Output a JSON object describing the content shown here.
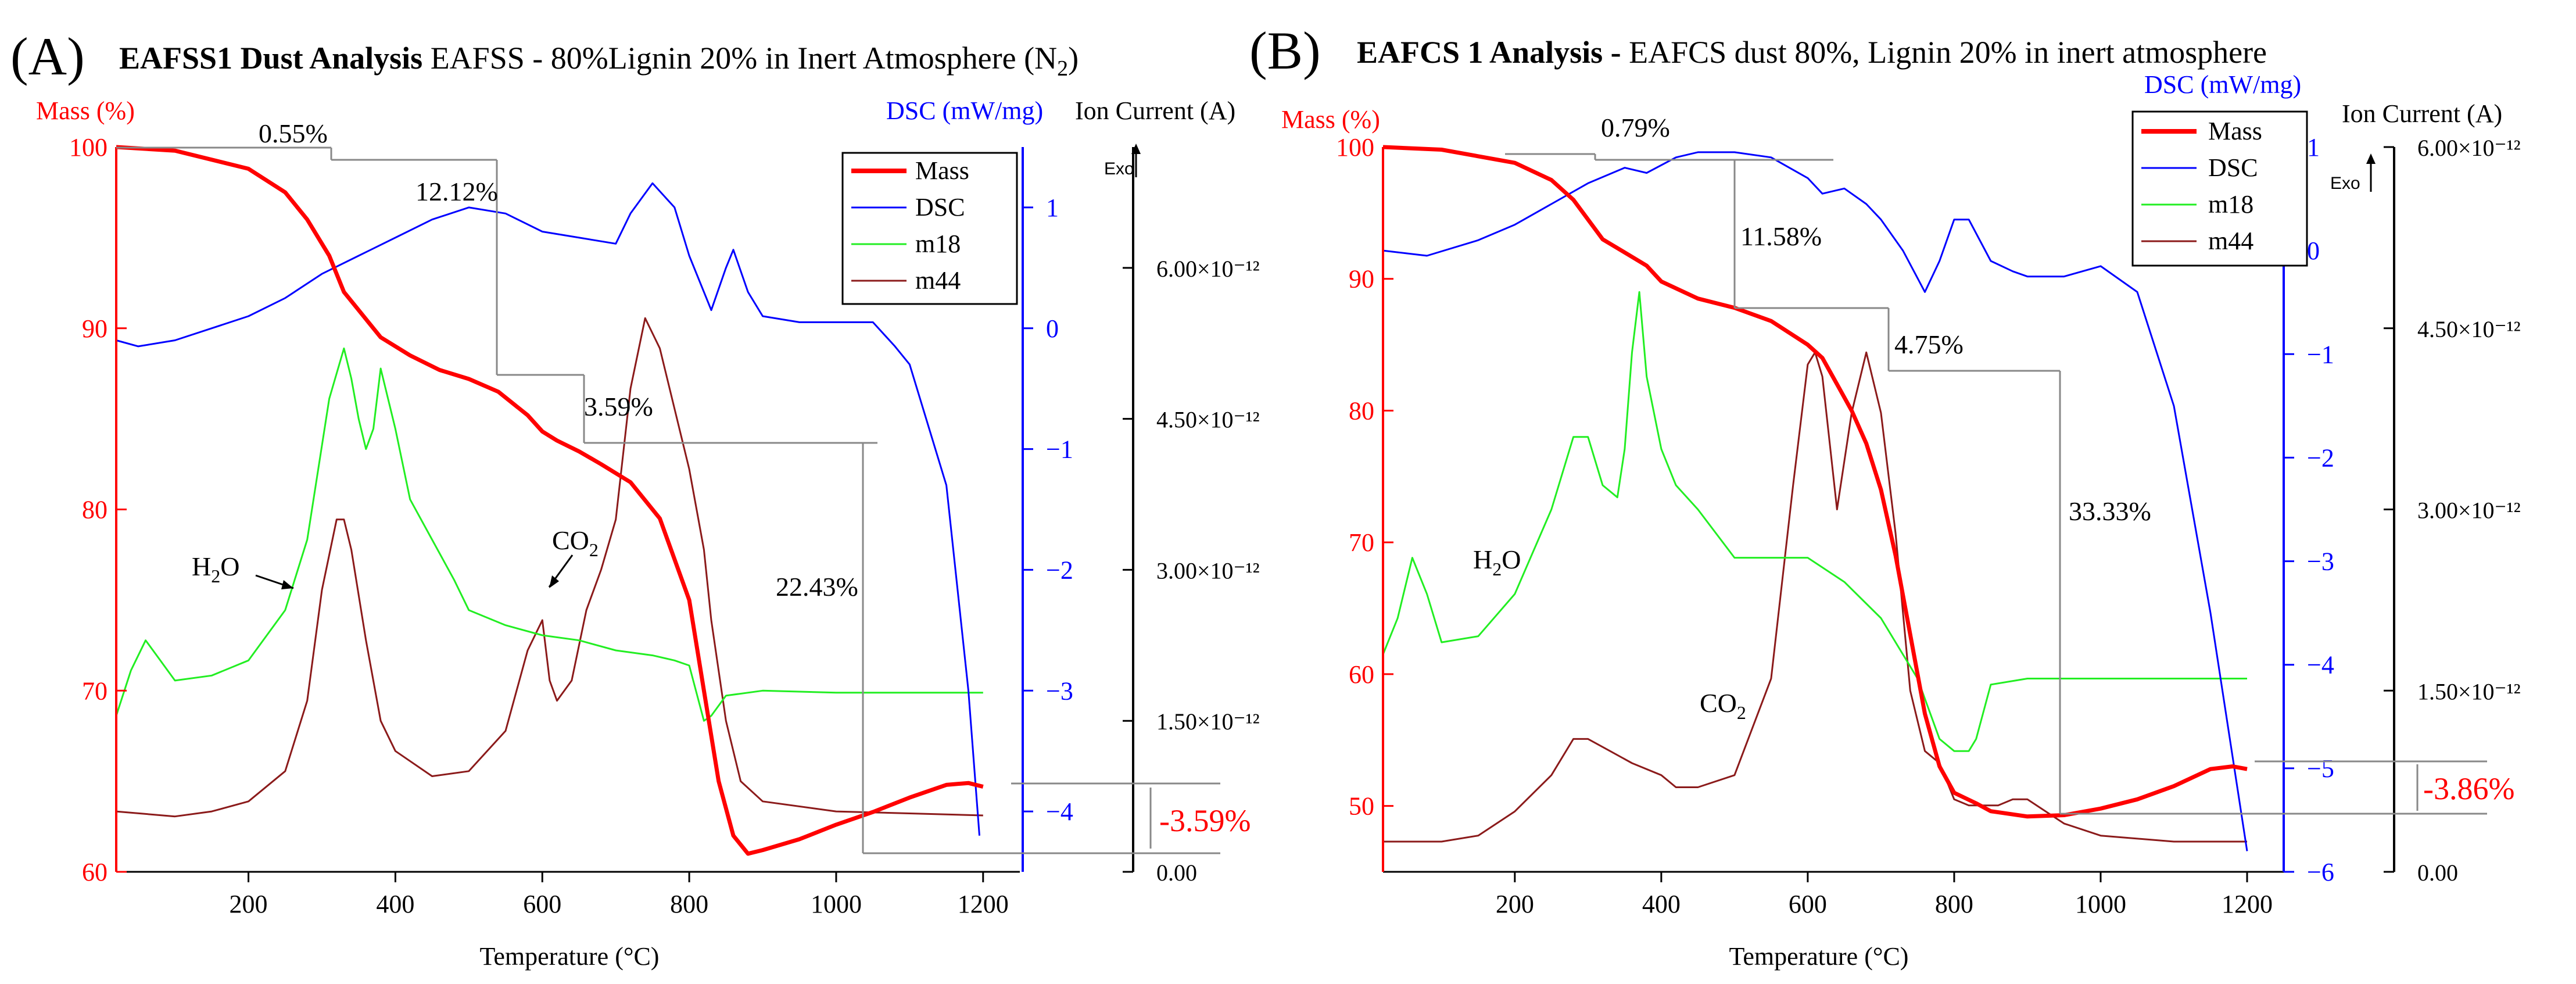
{
  "colors": {
    "mass": "#ff0000",
    "dsc": "#0000ff",
    "m18": "#22ee22",
    "m44": "#8b1a1a",
    "step": "#888888",
    "ion_axis": "#000000"
  },
  "chart_data": [
    {
      "type": "line",
      "panel_letter": "(A)",
      "title_bold": "EAFSS1 Dust Analysis",
      "title_rest": "EAFSS - 80%Lignin 20% in Inert Atmosphere (N",
      "title_sub": "2",
      "title_end": ")",
      "xlabel": "Temperature (°C)",
      "xlim": [
        20,
        1250
      ],
      "xticks": [
        200,
        400,
        600,
        800,
        1000,
        1200
      ],
      "ylabel_mass": "Mass (%)",
      "ylim_mass": [
        60,
        100
      ],
      "yticks_mass": [
        60,
        70,
        80,
        90,
        100
      ],
      "ylabel_dsc": "DSC (mW/mg)",
      "ylim_dsc": [
        -4.5,
        1.5
      ],
      "yticks_dsc": [
        -4,
        -3,
        -2,
        -1,
        0,
        1
      ],
      "ylabel_ion": "Ion Current (A)",
      "ylim_ion": [
        0,
        7.2
      ],
      "yticks_ion": [
        "0.00",
        "1.50×10⁻¹²",
        "3.00×10⁻¹²",
        "4.50×10⁻¹²",
        "6.00×10⁻¹²"
      ],
      "exo_label": "Exo",
      "legend": [
        "Mass",
        "DSC",
        "m18",
        "m44"
      ],
      "series": [
        {
          "name": "Mass",
          "axis": "mass",
          "x": [
            20,
            100,
            200,
            250,
            280,
            310,
            330,
            350,
            380,
            420,
            460,
            500,
            540,
            580,
            600,
            620,
            650,
            680,
            720,
            760,
            800,
            820,
            840,
            860,
            880,
            900,
            950,
            1000,
            1050,
            1100,
            1150,
            1180,
            1200
          ],
          "y": [
            100,
            99.8,
            98.8,
            97.5,
            96,
            94,
            92,
            91,
            89.5,
            88.5,
            87.7,
            87.2,
            86.5,
            85.2,
            84.3,
            83.8,
            83.2,
            82.5,
            81.5,
            79.5,
            75,
            70,
            65,
            62,
            61,
            61.2,
            61.8,
            62.6,
            63.3,
            64.1,
            64.8,
            64.9,
            64.7
          ]
        },
        {
          "name": "DSC",
          "axis": "dsc",
          "x": [
            20,
            50,
            100,
            150,
            200,
            250,
            300,
            350,
            400,
            450,
            500,
            550,
            600,
            650,
            700,
            720,
            750,
            780,
            800,
            820,
            830,
            850,
            860,
            880,
            900,
            950,
            1000,
            1050,
            1080,
            1100,
            1150,
            1180,
            1195
          ],
          "y": [
            -0.1,
            -0.15,
            -0.1,
            0,
            0.1,
            0.25,
            0.45,
            0.6,
            0.75,
            0.9,
            1,
            0.95,
            0.8,
            0.75,
            0.7,
            0.95,
            1.2,
            1,
            0.6,
            0.3,
            0.15,
            0.5,
            0.65,
            0.3,
            0.1,
            0.05,
            0.05,
            0.05,
            -0.15,
            -0.3,
            -1.3,
            -3,
            -4.2
          ]
        },
        {
          "name": "m18",
          "axis": "ion",
          "x": [
            20,
            40,
            60,
            80,
            100,
            150,
            200,
            250,
            280,
            310,
            330,
            340,
            350,
            360,
            370,
            380,
            400,
            420,
            450,
            480,
            500,
            550,
            600,
            650,
            700,
            750,
            780,
            800,
            820,
            830,
            850,
            900,
            1000,
            1100,
            1200
          ],
          "y": [
            1.55,
            2,
            2.3,
            2.1,
            1.9,
            1.95,
            2.1,
            2.6,
            3.3,
            4.7,
            5.2,
            4.9,
            4.5,
            4.2,
            4.4,
            5,
            4.4,
            3.7,
            3.3,
            2.9,
            2.6,
            2.45,
            2.35,
            2.3,
            2.2,
            2.15,
            2.1,
            2.05,
            1.5,
            1.55,
            1.75,
            1.8,
            1.78,
            1.78,
            1.78
          ]
        },
        {
          "name": "m44",
          "axis": "ion",
          "x": [
            20,
            100,
            150,
            200,
            250,
            280,
            300,
            320,
            330,
            340,
            360,
            380,
            400,
            450,
            500,
            550,
            580,
            600,
            610,
            620,
            640,
            660,
            680,
            700,
            720,
            740,
            760,
            780,
            800,
            820,
            830,
            850,
            870,
            900,
            1000,
            1100,
            1200
          ],
          "y": [
            0.6,
            0.55,
            0.6,
            0.7,
            1,
            1.7,
            2.8,
            3.5,
            3.5,
            3.2,
            2.3,
            1.5,
            1.2,
            0.95,
            1,
            1.4,
            2.2,
            2.5,
            1.9,
            1.7,
            1.9,
            2.6,
            3,
            3.5,
            4.8,
            5.5,
            5.2,
            4.6,
            4,
            3.2,
            2.5,
            1.5,
            0.9,
            0.7,
            0.6,
            0.58,
            0.56
          ]
        }
      ],
      "annotations": {
        "h2o": "H",
        "h2o_sub": "2",
        "h2o_end": "O",
        "co2": "CO",
        "co2_sub": "2"
      },
      "step_labels": [
        "0.55%",
        "12.12%",
        "3.59%",
        "22.43%",
        "-3.59%"
      ]
    },
    {
      "type": "line",
      "panel_letter": "(B)",
      "title_bold": "EAFCS 1 Analysis -",
      "title_rest": "EAFCS dust 80%, Lignin 20% in inert atmosphere",
      "xlabel": "Temperature (°C)",
      "xlim": [
        20,
        1250
      ],
      "xticks": [
        200,
        400,
        600,
        800,
        1000,
        1200
      ],
      "ylabel_mass": "Mass (%)",
      "ylim_mass": [
        45,
        100
      ],
      "yticks_mass": [
        50,
        60,
        70,
        80,
        90,
        100
      ],
      "ylabel_dsc": "DSC (mW/mg)",
      "ylim_dsc": [
        -6,
        1
      ],
      "yticks_dsc": [
        -6,
        -5,
        -4,
        -3,
        -2,
        -1,
        0,
        1
      ],
      "ylabel_ion": "Ion Current (A)",
      "ylim_ion": [
        0,
        6
      ],
      "yticks_ion": [
        "0.00",
        "1.50×10⁻¹²",
        "3.00×10⁻¹²",
        "4.50×10⁻¹²",
        "6.00×10⁻¹²"
      ],
      "exo_label": "Exo",
      "legend": [
        "Mass",
        "DSC",
        "m18",
        "m44"
      ],
      "series": [
        {
          "name": "Mass",
          "axis": "mass",
          "x": [
            20,
            100,
            200,
            250,
            280,
            300,
            320,
            350,
            380,
            400,
            450,
            500,
            550,
            600,
            620,
            640,
            660,
            680,
            700,
            720,
            740,
            760,
            780,
            800,
            830,
            850,
            900,
            950,
            1000,
            1050,
            1100,
            1150,
            1180,
            1200
          ],
          "y": [
            100,
            99.8,
            98.8,
            97.5,
            96,
            94.5,
            93,
            92,
            91,
            89.8,
            88.5,
            87.8,
            86.8,
            85,
            84,
            82,
            80,
            77.5,
            74,
            69,
            63,
            57,
            53,
            51,
            50.2,
            49.6,
            49.2,
            49.3,
            49.8,
            50.5,
            51.5,
            52.8,
            53,
            52.8
          ]
        },
        {
          "name": "DSC",
          "axis": "dsc",
          "x": [
            20,
            80,
            150,
            200,
            250,
            300,
            350,
            380,
            420,
            450,
            500,
            550,
            600,
            620,
            650,
            680,
            700,
            730,
            760,
            780,
            800,
            820,
            850,
            880,
            900,
            950,
            1000,
            1050,
            1100,
            1150,
            1200
          ],
          "y": [
            0,
            -0.05,
            0.1,
            0.25,
            0.45,
            0.65,
            0.8,
            0.75,
            0.9,
            0.95,
            0.95,
            0.9,
            0.7,
            0.55,
            0.6,
            0.45,
            0.3,
            0,
            -0.4,
            -0.1,
            0.3,
            0.3,
            -0.1,
            -0.2,
            -0.25,
            -0.25,
            -0.15,
            -0.4,
            -1.5,
            -3.5,
            -5.8
          ]
        },
        {
          "name": "m18",
          "axis": "ion",
          "x": [
            20,
            40,
            60,
            80,
            100,
            150,
            200,
            250,
            280,
            300,
            320,
            340,
            350,
            360,
            370,
            380,
            400,
            420,
            450,
            500,
            550,
            600,
            650,
            700,
            750,
            780,
            800,
            820,
            830,
            850,
            900,
            1000,
            1100,
            1200
          ],
          "y": [
            1.8,
            2.1,
            2.6,
            2.3,
            1.9,
            1.95,
            2.3,
            3,
            3.6,
            3.6,
            3.2,
            3.1,
            3.5,
            4.3,
            4.8,
            4.1,
            3.5,
            3.2,
            3,
            2.6,
            2.6,
            2.6,
            2.4,
            2.1,
            1.6,
            1.1,
            1,
            1,
            1.1,
            1.55,
            1.6,
            1.6,
            1.6,
            1.6
          ]
        },
        {
          "name": "m44",
          "axis": "ion",
          "x": [
            20,
            100,
            150,
            200,
            250,
            280,
            300,
            330,
            360,
            400,
            420,
            450,
            500,
            550,
            580,
            600,
            610,
            620,
            640,
            660,
            680,
            700,
            720,
            740,
            760,
            780,
            800,
            820,
            840,
            860,
            880,
            900,
            950,
            1000,
            1100,
            1200
          ],
          "y": [
            0.25,
            0.25,
            0.3,
            0.5,
            0.8,
            1.1,
            1.1,
            1,
            0.9,
            0.8,
            0.7,
            0.7,
            0.8,
            1.6,
            3.2,
            4.2,
            4.3,
            4.1,
            3,
            3.8,
            4.3,
            3.8,
            2.8,
            1.5,
            1,
            0.9,
            0.6,
            0.55,
            0.55,
            0.55,
            0.6,
            0.6,
            0.4,
            0.3,
            0.25,
            0.25
          ]
        }
      ],
      "annotations": {
        "h2o": "H",
        "h2o_sub": "2",
        "h2o_end": "O",
        "co2": "CO",
        "co2_sub": "2"
      },
      "step_labels": [
        "0.79%",
        "11.58%",
        "4.75%",
        "33.33%",
        "-3.86%"
      ]
    }
  ]
}
